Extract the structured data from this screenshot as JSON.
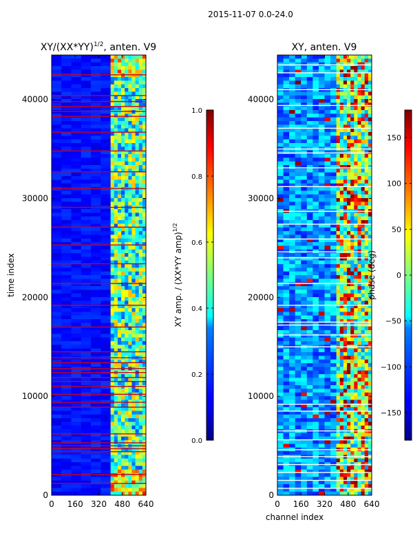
{
  "suptitle": "2015-11-07 0.0-24.0",
  "chart_data": [
    {
      "type": "heatmap",
      "title_main": "XY/(XX*YY)",
      "title_exp": "1/2",
      "title_tail": ", anten. V9",
      "xlabel": "",
      "ylabel": "time index",
      "xlim": [
        0,
        640
      ],
      "ylim": [
        0,
        44500
      ],
      "xticks": [
        "0",
        "160",
        "320",
        "480",
        "640"
      ],
      "xtick_values": [
        0,
        160,
        320,
        480,
        640
      ],
      "yticks": [
        "0",
        "10000",
        "20000",
        "30000",
        "40000"
      ],
      "ytick_values": [
        0,
        10000,
        20000,
        30000,
        40000
      ],
      "colorbar": {
        "label_main": "XY amp. / (XX*YY amp)",
        "label_exp": "1/2",
        "range": [
          0.0,
          1.0
        ],
        "ticks": [
          "0.0",
          "0.2",
          "0.4",
          "0.6",
          "0.8",
          "1.0"
        ],
        "tick_values": [
          0.0,
          0.2,
          0.4,
          0.6,
          0.8,
          1.0
        ]
      },
      "active_band_channels": [
        400,
        640
      ],
      "flagged_rows": [
        1200,
        2100,
        4400,
        4700,
        5000,
        5300,
        6200,
        8900,
        9400,
        10200,
        11000,
        11500,
        11900,
        12400,
        12800,
        13400,
        13900,
        14500,
        17000,
        19200,
        21400,
        23400,
        25300,
        27100,
        29100,
        31000,
        32700,
        34800,
        36700,
        38300,
        38800,
        39300,
        39800,
        40400,
        42500
      ]
    },
    {
      "type": "heatmap",
      "title_main": "XY, anten. V9",
      "xlabel": "channel index",
      "ylabel": "",
      "xlim": [
        0,
        640
      ],
      "ylim": [
        0,
        44500
      ],
      "xticks": [
        "0",
        "160",
        "320",
        "480",
        "640"
      ],
      "xtick_values": [
        0,
        160,
        320,
        480,
        640
      ],
      "yticks": [
        "0",
        "10000",
        "20000",
        "30000",
        "40000"
      ],
      "ytick_values": [
        0,
        10000,
        20000,
        30000,
        40000
      ],
      "colorbar": {
        "label_main": "phase (deg)",
        "range": [
          -180,
          180
        ],
        "ticks": [
          "−150",
          "−100",
          "−50",
          "0",
          "50",
          "100",
          "150"
        ],
        "tick_values": [
          -150,
          -100,
          -50,
          0,
          50,
          100,
          150
        ]
      },
      "active_band_channels": [
        400,
        640
      ],
      "flagged_rows": [
        700,
        1500,
        2300,
        3100,
        3900,
        4600,
        5600,
        6500,
        8500,
        9200,
        15000,
        16200,
        17200,
        17500,
        19200,
        21400,
        24000,
        24600,
        25900,
        27400,
        28700,
        31200,
        33100,
        34600,
        35000,
        37100,
        39400,
        41000,
        42700,
        43500
      ]
    }
  ]
}
